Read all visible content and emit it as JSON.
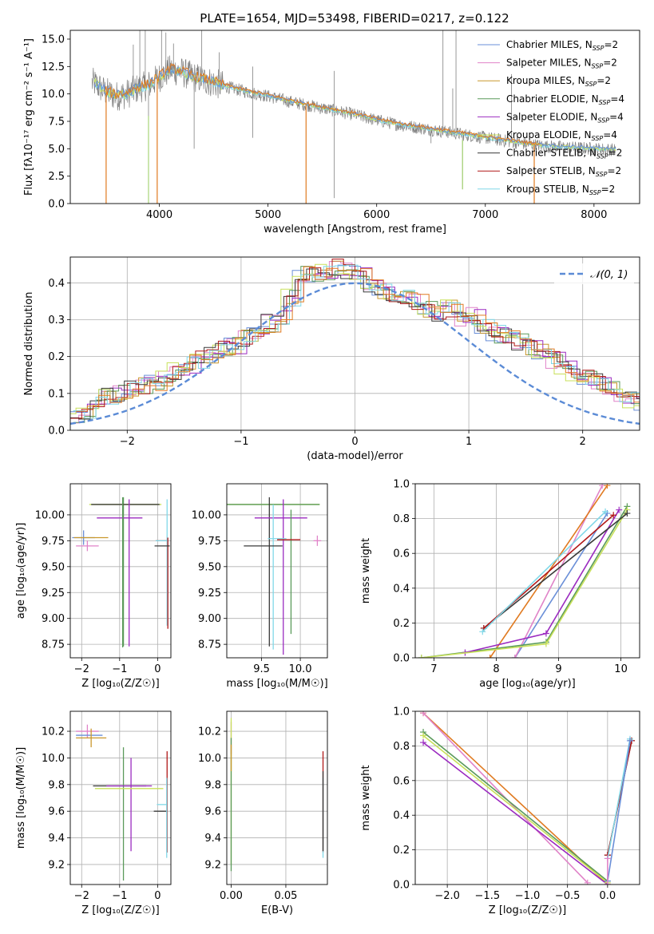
{
  "figure_title": "PLATE=1654, MJD=53498, FIBERID=0217, z=0.122",
  "model_colors": {
    "Chabrier MILES": "#6a8fd8",
    "Salpeter MILES": "#e083c8",
    "Kroupa MILES": "#c9972d",
    "Chabrier ELODIE": "#5a9a5a",
    "Salpeter ELODIE": "#9b2bc0",
    "Kroupa ELODIE": "#c8e05a",
    "Chabrier STELIB": "#3a3a3a",
    "Salpeter STELIB": "#b01818",
    "Kroupa STELIB": "#80d8e8",
    "fit_orange": "#e07a20",
    "fit_green": "#9ad060",
    "normal": "#5b8bd6",
    "observed": "#808080"
  },
  "chart_data": [
    {
      "panel": "spectrum",
      "type": "line",
      "title": "PLATE=1654, MJD=53498, FIBERID=0217, z=0.122",
      "xlabel": "wavelength [Angstrom, rest frame]",
      "ylabel": "Flux [fλ10⁻¹⁷ erg cm⁻² s⁻¹ A⁻¹]",
      "xlim": [
        3180,
        8420
      ],
      "ylim": [
        0,
        15.8
      ],
      "xticks": [
        "4000",
        "5000",
        "6000",
        "7000",
        "8000"
      ],
      "yticks": [
        "0.0",
        "2.5",
        "5.0",
        "7.5",
        "10.0",
        "12.5",
        "15.0"
      ],
      "legend_position": "upper right",
      "legend": [
        {
          "label": "Chabrier MILES, NSSP=2",
          "color": "#6a8fd8"
        },
        {
          "label": "Salpeter MILES, NSSP=2",
          "color": "#e083c8"
        },
        {
          "label": "Kroupa MILES, NSSP=2",
          "color": "#c9972d"
        },
        {
          "label": "Chabrier ELODIE, NSSP=4",
          "color": "#5a9a5a"
        },
        {
          "label": "Salpeter ELODIE, NSSP=4",
          "color": "#9b2bc0"
        },
        {
          "label": "Kroupa ELODIE, NSSP=4",
          "color": "#c8e05a"
        },
        {
          "label": "Chabrier STELIB, NSSP=2",
          "color": "#3a3a3a"
        },
        {
          "label": "Salpeter STELIB, NSSP=2",
          "color": "#b01818"
        },
        {
          "label": "Kroupa STELIB, NSSP=2",
          "color": "#80d8e8"
        }
      ],
      "continuum": {
        "x": [
          3400,
          3500,
          3600,
          3700,
          3800,
          3900,
          4000,
          4100,
          4200,
          4300,
          4400,
          4500,
          4600,
          4800,
          5000,
          5200,
          5400,
          5600,
          5800,
          6000,
          6200,
          6400,
          6600,
          6800,
          7000,
          7200,
          7400,
          7600,
          7800,
          8000,
          8200
        ],
        "y": [
          11.0,
          10.2,
          9.8,
          10.0,
          10.5,
          10.8,
          11.5,
          12.2,
          12.0,
          11.6,
          11.3,
          11.0,
          10.7,
          10.2,
          9.8,
          9.3,
          8.9,
          8.5,
          8.1,
          7.6,
          7.2,
          6.9,
          6.6,
          6.3,
          6.0,
          5.7,
          5.4,
          5.2,
          5.1,
          5.0,
          4.9
        ]
      },
      "orange_model_drops_at": [
        3510,
        3980,
        5350,
        7450
      ],
      "orange_model_start": 3500,
      "orange_model_end": 7500,
      "observed_spikes": [
        {
          "x": 3760,
          "y": 14.5
        },
        {
          "x": 3820,
          "y": 15.8
        },
        {
          "x": 3870,
          "y": 15.8
        },
        {
          "x": 4020,
          "y": 15.8
        },
        {
          "x": 4060,
          "y": 15.6
        },
        {
          "x": 4130,
          "y": 14.6
        },
        {
          "x": 4390,
          "y": 15.8
        },
        {
          "x": 4550,
          "y": 13.8
        },
        {
          "x": 4860,
          "y": 12.5
        },
        {
          "x": 5610,
          "y": 12.1
        },
        {
          "x": 6610,
          "y": 15.8
        },
        {
          "x": 6700,
          "y": 10.5
        },
        {
          "x": 6730,
          "y": 15.8
        },
        {
          "x": 7240,
          "y": 11.8
        }
      ],
      "observed_dips": [
        {
          "x": 3900,
          "y": 0.0
        },
        {
          "x": 4320,
          "y": 5.0
        },
        {
          "x": 4860,
          "y": 6.0
        },
        {
          "x": 5610,
          "y": 0.5
        },
        {
          "x": 6500,
          "y": 5.5
        },
        {
          "x": 6790,
          "y": 1.3
        }
      ]
    },
    {
      "panel": "residuals",
      "type": "step",
      "xlabel": "(data-model)/error",
      "ylabel": "Normed distribution",
      "xlim": [
        -2.5,
        2.5
      ],
      "ylim": [
        0,
        0.47
      ],
      "xticks": [
        "−2",
        "−1",
        "0",
        "1",
        "2"
      ],
      "yticks": [
        "0.0",
        "0.1",
        "0.2",
        "0.3",
        "0.4"
      ],
      "grid": true,
      "legend": [
        {
          "label": "𝒩(0, 1)",
          "color": "#5b8bd6",
          "style": "dashed"
        }
      ],
      "bin_width": 0.1,
      "bins_start": -2.5,
      "base_histogram": [
        0.03,
        0.05,
        0.07,
        0.09,
        0.1,
        0.11,
        0.12,
        0.13,
        0.14,
        0.16,
        0.18,
        0.19,
        0.2,
        0.22,
        0.23,
        0.25,
        0.26,
        0.29,
        0.31,
        0.36,
        0.42,
        0.42,
        0.43,
        0.44,
        0.43,
        0.42,
        0.4,
        0.38,
        0.37,
        0.36,
        0.35,
        0.33,
        0.32,
        0.33,
        0.3,
        0.31,
        0.28,
        0.26,
        0.25,
        0.24,
        0.22,
        0.21,
        0.19,
        0.17,
        0.15,
        0.14,
        0.13,
        0.11,
        0.09,
        0.08,
        0.07,
        0.06,
        0.05,
        0.04,
        0.05,
        0.04,
        0.03,
        0.03,
        0.02,
        0.02
      ],
      "normal_curve": {
        "mean": 0,
        "sigma": 1
      }
    },
    {
      "panel": "age_vs_Z",
      "type": "errorbar",
      "xlabel": "Z [log₁₀(Z/Z☉)]",
      "ylabel": "age  [log₁₀(age/yr)]",
      "xlim": [
        -2.3,
        0.35
      ],
      "ylim": [
        8.62,
        10.3
      ],
      "xticks": [
        "−2",
        "−1",
        "0"
      ],
      "yticks": [
        "8.75",
        "9.00",
        "9.25",
        "9.50",
        "9.75",
        "10.00"
      ],
      "grid": true,
      "points": [
        {
          "model": "Chabrier MILES",
          "x": -1.95,
          "x_err": 0.3,
          "y": 9.78,
          "y_err": 0.07,
          "color": "#6a8fd8"
        },
        {
          "model": "Salpeter MILES",
          "x": -1.85,
          "x_err": 0.3,
          "y": 9.7,
          "y_err": 0.05,
          "color": "#e083c8"
        },
        {
          "model": "Kroupa MILES",
          "x": -1.75,
          "x_err": 0.45,
          "y": 9.78,
          "y_err": 0.0,
          "color": "#c9972d"
        },
        {
          "model": "Chabrier ELODIE",
          "x": -0.9,
          "x_err": 0.0,
          "y": 9.45,
          "y_err": 0.72,
          "color": "#5a9a5a"
        },
        {
          "model": "Salpeter ELODIE",
          "x": -1.0,
          "x_err": 0.6,
          "y": 9.97,
          "y_err": 0.0,
          "color": "#9b2bc0"
        },
        {
          "model": "Kroupa ELODIE",
          "x": -0.85,
          "x_err": 0.95,
          "y": 10.1,
          "y_err": 0.0,
          "color": "#c8e05a"
        },
        {
          "model": "Chabrier STELIB",
          "x": -0.85,
          "x_err": 0.9,
          "y": 10.1,
          "y_err": 0.0,
          "color": "#3a3a3a"
        },
        {
          "model": "Salpeter STELIB",
          "x": 0.1,
          "x_err": 0.15,
          "y": 9.75,
          "y_err": 0.0,
          "color": "#b01818"
        },
        {
          "model": "Kroupa STELIB",
          "x": 0.1,
          "x_err": 0.15,
          "y": 9.75,
          "y_err": 0.0,
          "color": "#80d8e8"
        }
      ],
      "extra_segments": [
        {
          "x1": -0.75,
          "y1": 8.73,
          "x2": -0.75,
          "y2": 10.15,
          "color": "#9b2bc0"
        },
        {
          "x1": -0.92,
          "y1": 8.72,
          "x2": -0.92,
          "y2": 10.17,
          "color": "#5a9a5a"
        },
        {
          "x1": 0.25,
          "y1": 8.93,
          "x2": 0.25,
          "y2": 10.15,
          "color": "#80d8e8"
        },
        {
          "x1": 0.27,
          "y1": 8.9,
          "x2": 0.27,
          "y2": 9.78,
          "color": "#b01818"
        },
        {
          "x1": -0.08,
          "y1": 9.7,
          "x2": 0.32,
          "y2": 9.7,
          "color": "#3a3a3a"
        }
      ]
    },
    {
      "panel": "age_vs_mass",
      "type": "errorbar",
      "xlabel": "mass [log₁₀(M/M☉)]",
      "xlim": [
        9.05,
        10.35
      ],
      "ylim": [
        8.62,
        10.3
      ],
      "xticks": [
        "9.5",
        "10.0"
      ],
      "yticks": [
        "8.75",
        "9.00",
        "9.25",
        "9.50",
        "9.75",
        "10.00"
      ],
      "grid": true,
      "points": [
        {
          "x": 9.65,
          "x_err": 0.6,
          "y": 10.1,
          "y_err": 0.0,
          "color": "#c8e05a"
        },
        {
          "x": 9.65,
          "x_err": 0.6,
          "y": 10.1,
          "y_err": 0.0,
          "color": "#5a9a5a"
        },
        {
          "x": 9.6,
          "x_err": 0.0,
          "y": 9.45,
          "y_err": 0.72,
          "color": "#3a3a3a"
        },
        {
          "x": 9.78,
          "x_err": 0.0,
          "y": 9.4,
          "y_err": 0.75,
          "color": "#9b2bc0"
        },
        {
          "x": 9.75,
          "x_err": 0.34,
          "y": 9.97,
          "y_err": 0.0,
          "color": "#9b2bc0"
        },
        {
          "x": 9.65,
          "x_err": 0.0,
          "y": 9.4,
          "y_err": 0.7,
          "color": "#80d8e8"
        },
        {
          "x": 9.88,
          "x_err": 0.0,
          "y": 9.45,
          "y_err": 0.6,
          "color": "#5a9a5a"
        },
        {
          "x": 9.7,
          "x_err": 0.12,
          "y": 9.77,
          "y_err": 0.0,
          "color": "#80d8e8"
        },
        {
          "x": 9.85,
          "x_err": 0.15,
          "y": 9.76,
          "y_err": 0.0,
          "color": "#b01818"
        },
        {
          "x": 9.52,
          "x_err": 0.25,
          "y": 9.7,
          "y_err": 0.0,
          "color": "#3a3a3a"
        },
        {
          "x": 10.22,
          "x_err": 0.05,
          "y": 9.75,
          "y_err": 0.05,
          "color": "#e083c8"
        }
      ]
    },
    {
      "panel": "massweight_vs_age",
      "type": "line",
      "xlabel": "age  [log₁₀(age/yr)]",
      "ylabel": "mass weight",
      "xlim": [
        6.7,
        10.3
      ],
      "ylim": [
        0,
        1.0
      ],
      "xticks": [
        "7",
        "8",
        "9",
        "10"
      ],
      "yticks": [
        "0.0",
        "0.2",
        "0.4",
        "0.6",
        "0.8",
        "1.0"
      ],
      "grid": true,
      "series": [
        {
          "color": "#6a8fd8",
          "x": [
            8.3,
            9.78
          ],
          "y": [
            0.0,
            0.83
          ]
        },
        {
          "color": "#e083c8",
          "x": [
            8.3,
            9.7
          ],
          "y": [
            0.0,
            0.99
          ]
        },
        {
          "color": "#e07a20",
          "x": [
            7.9,
            9.78
          ],
          "y": [
            0.0,
            0.99
          ]
        },
        {
          "color": "#5a9a5a",
          "x": [
            6.8,
            8.8,
            10.1
          ],
          "y": [
            0.0,
            0.09,
            0.87
          ]
        },
        {
          "color": "#9b2bc0",
          "x": [
            7.5,
            8.8,
            9.97
          ],
          "y": [
            0.03,
            0.14,
            0.85
          ]
        },
        {
          "color": "#c8e05a",
          "x": [
            6.8,
            8.8,
            10.1
          ],
          "y": [
            0.0,
            0.08,
            0.85
          ]
        },
        {
          "color": "#3a3a3a",
          "x": [
            7.8,
            10.1
          ],
          "y": [
            0.17,
            0.83
          ]
        },
        {
          "color": "#b01818",
          "x": [
            7.8,
            9.88
          ],
          "y": [
            0.17,
            0.82
          ]
        },
        {
          "color": "#80d8e8",
          "x": [
            7.78,
            9.75
          ],
          "y": [
            0.15,
            0.84
          ]
        }
      ]
    },
    {
      "panel": "mass_vs_Z",
      "type": "errorbar",
      "xlabel": "Z [log₁₀(Z/Z☉)]",
      "ylabel": "mass [log₁₀(M/M☉)]",
      "xlim": [
        -2.3,
        0.35
      ],
      "ylim": [
        9.05,
        10.35
      ],
      "xticks": [
        "−2",
        "−1",
        "0"
      ],
      "yticks": [
        "9.2",
        "9.4",
        "9.6",
        "9.8",
        "10.0",
        "10.2"
      ],
      "grid": true,
      "points": [
        {
          "x": -1.85,
          "x_err": 0.3,
          "y": 10.2,
          "y_err": 0.05,
          "color": "#e083c8"
        },
        {
          "x": -1.8,
          "x_err": 0.35,
          "y": 10.17,
          "y_err": 0.0,
          "color": "#6a8fd8"
        },
        {
          "x": -1.75,
          "x_err": 0.4,
          "y": 10.15,
          "y_err": 0.07,
          "color": "#c9972d"
        },
        {
          "x": -1.0,
          "x_err": 0.7,
          "y": 9.79,
          "y_err": 0.0,
          "color": "#3a3a3a"
        },
        {
          "x": -0.9,
          "x_err": 0.0,
          "y": 9.58,
          "y_err": 0.5,
          "color": "#5a9a5a"
        },
        {
          "x": -0.7,
          "x_err": 0.0,
          "y": 9.65,
          "y_err": 0.35,
          "color": "#9b2bc0"
        },
        {
          "x": -0.75,
          "x_err": 0.9,
          "y": 9.77,
          "y_err": 0.0,
          "color": "#c8e05a"
        },
        {
          "x": -0.75,
          "x_err": 0.6,
          "y": 9.79,
          "y_err": 0.0,
          "color": "#9b2bc0"
        },
        {
          "x": 0.08,
          "x_err": 0.18,
          "y": 9.6,
          "y_err": 0.0,
          "color": "#3a3a3a"
        },
        {
          "x": 0.12,
          "x_err": 0.14,
          "y": 9.65,
          "y_err": 0.0,
          "color": "#80d8e8"
        },
        {
          "x": 0.25,
          "x_err": 0.0,
          "y": 9.67,
          "y_err": 0.38,
          "color": "#b01818"
        },
        {
          "x": 0.24,
          "x_err": 0.0,
          "y": 9.55,
          "y_err": 0.3,
          "color": "#80d8e8"
        }
      ]
    },
    {
      "panel": "mass_vs_ebv",
      "type": "errorbar",
      "xlabel": "E(B-V)",
      "xlim": [
        -0.004,
        0.088
      ],
      "ylim": [
        9.05,
        10.35
      ],
      "xticks": [
        "0.00",
        "0.05"
      ],
      "yticks": [
        "9.2",
        "9.4",
        "9.6",
        "9.8",
        "10.0",
        "10.2"
      ],
      "grid": true,
      "points": [
        {
          "x": 0.0,
          "x_err": 0.0,
          "y": 10.15,
          "y_err": 0.12,
          "color": "#e083c8"
        },
        {
          "x": 0.0,
          "x_err": 0.0,
          "y": 9.75,
          "y_err": 0.55,
          "color": "#c8e05a"
        },
        {
          "x": 0.0,
          "x_err": 0.0,
          "y": 9.65,
          "y_err": 0.5,
          "color": "#5a9a5a"
        },
        {
          "x": 0.0,
          "x_err": 0.0,
          "y": 10.0,
          "y_err": 0.1,
          "color": "#c9972d"
        },
        {
          "x": 0.084,
          "x_err": 0.0,
          "y": 9.67,
          "y_err": 0.38,
          "color": "#b01818"
        },
        {
          "x": 0.084,
          "x_err": 0.0,
          "y": 9.55,
          "y_err": 0.3,
          "color": "#80d8e8"
        },
        {
          "x": 0.084,
          "x_err": 0.0,
          "y": 9.6,
          "y_err": 0.3,
          "color": "#3a3a3a"
        }
      ]
    },
    {
      "panel": "massweight_vs_Z",
      "type": "line",
      "xlabel": "Z [log₁₀(Z/Z☉)]",
      "ylabel": "mass weight",
      "xlim": [
        -2.4,
        0.4
      ],
      "ylim": [
        0,
        1.0
      ],
      "xticks": [
        "−2.0",
        "−1.5",
        "−1.0",
        "−0.5",
        "0.0"
      ],
      "yticks": [
        "0.0",
        "0.2",
        "0.4",
        "0.6",
        "0.8",
        "1.0"
      ],
      "grid": true,
      "series": [
        {
          "color": "#e07a20",
          "x": [
            -2.3,
            0.0
          ],
          "y": [
            0.99,
            0.0
          ]
        },
        {
          "color": "#e083c8",
          "x": [
            -2.3,
            -0.25
          ],
          "y": [
            0.99,
            0.01
          ]
        },
        {
          "color": "#9b2bc0",
          "x": [
            -2.3,
            0.0
          ],
          "y": [
            0.82,
            0.0
          ]
        },
        {
          "color": "#5a9a5a",
          "x": [
            -2.3,
            0.0
          ],
          "y": [
            0.88,
            0.02
          ]
        },
        {
          "color": "#c8e05a",
          "x": [
            -2.3,
            0.0
          ],
          "y": [
            0.86,
            0.01
          ]
        },
        {
          "color": "#3a3a3a",
          "x": [
            0.0,
            0.3
          ],
          "y": [
            0.17,
            0.83
          ]
        },
        {
          "color": "#b01818",
          "x": [
            0.0,
            0.3
          ],
          "y": [
            0.17,
            0.83
          ]
        },
        {
          "color": "#80d8e8",
          "x": [
            0.0,
            0.28
          ],
          "y": [
            0.15,
            0.84
          ]
        },
        {
          "color": "#6a8fd8",
          "x": [
            0.0,
            0.28
          ],
          "y": [
            0.02,
            0.83
          ]
        },
        {
          "color": "#e083c8",
          "x": [
            0.0,
            0.0
          ],
          "y": [
            0.0,
            0.15
          ]
        }
      ]
    }
  ]
}
